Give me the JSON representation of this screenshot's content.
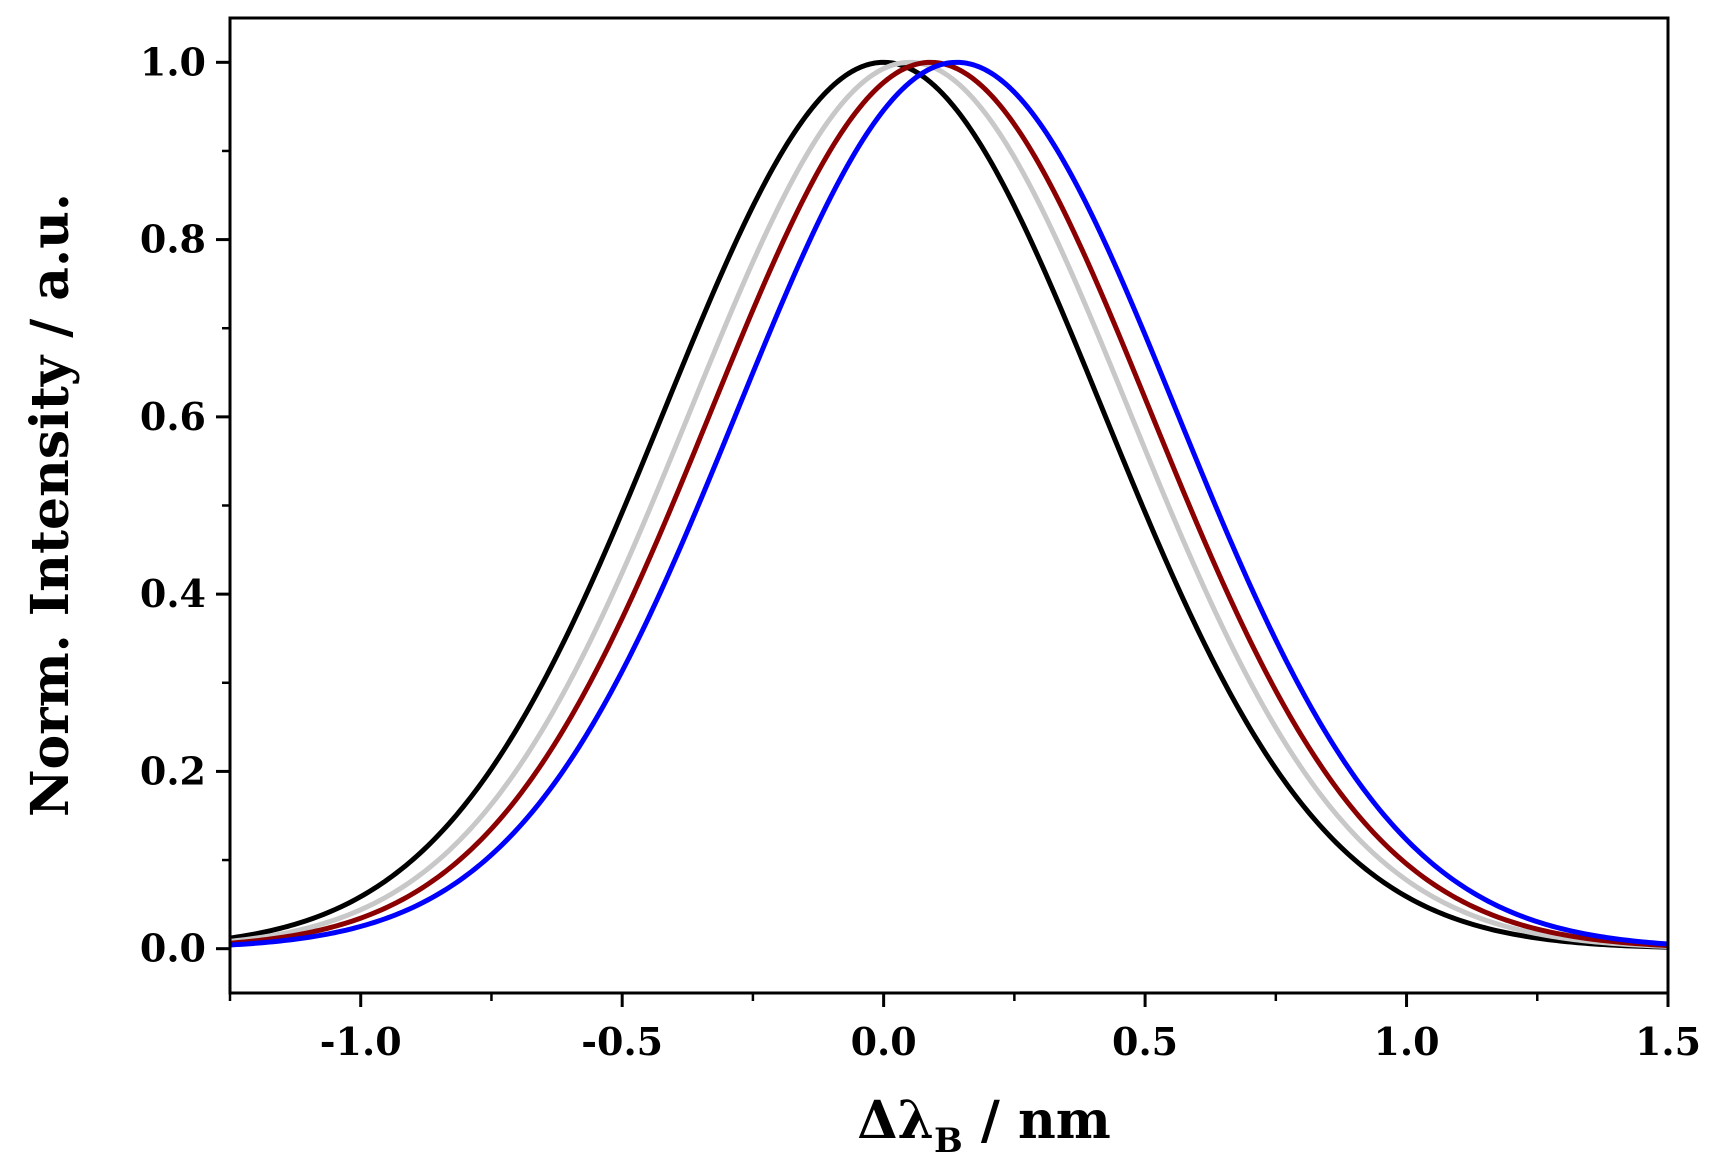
{
  "chart_data": {
    "type": "line",
    "title": "",
    "xlabel_main": "Δλ",
    "xlabel_sub": "B",
    "xlabel_unit": " / nm",
    "ylabel": "Norm. Intensity / a.u.",
    "xlim": [
      -1.25,
      1.5
    ],
    "ylim": [
      -0.05,
      1.05
    ],
    "xticks": [
      -1.0,
      -0.5,
      0.0,
      0.5,
      1.0,
      1.5
    ],
    "xtick_labels": [
      "-1.0",
      "-0.5",
      "0.0",
      "0.5",
      "1.0",
      "1.5"
    ],
    "yticks": [
      0.0,
      0.2,
      0.4,
      0.6,
      0.8,
      1.0
    ],
    "ytick_labels": [
      "0.0",
      "0.2",
      "0.4",
      "0.6",
      "0.8",
      "1.0"
    ],
    "grid": false,
    "legend": "none",
    "series": [
      {
        "name": "black",
        "color": "#000000",
        "center": 0.0,
        "sigma": 0.42
      },
      {
        "name": "light gray",
        "color": "#c8c8c8",
        "center": 0.05,
        "sigma": 0.42
      },
      {
        "name": "dark red",
        "color": "#8b0000",
        "center": 0.09,
        "sigma": 0.42
      },
      {
        "name": "blue",
        "color": "#0000ff",
        "center": 0.14,
        "sigma": 0.42
      }
    ]
  }
}
